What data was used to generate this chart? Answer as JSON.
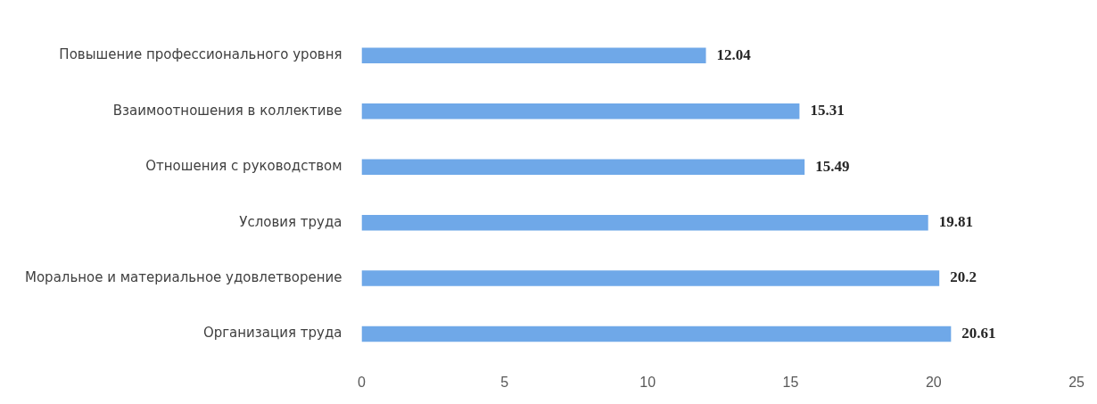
{
  "chart_data": {
    "type": "bar",
    "orientation": "horizontal",
    "categories": [
      "Повышение профессионального уровня",
      "Взаимоотношения в коллективе",
      "Отношения с руководством",
      "Условия труда",
      "Моральное и материальное удовлетворение",
      "Организация труда"
    ],
    "values": [
      12.04,
      15.31,
      15.49,
      19.81,
      20.2,
      20.61
    ],
    "color": "#6fa8e8",
    "xlim": [
      0,
      25
    ],
    "xticks": [
      0,
      5,
      10,
      15,
      20,
      25
    ],
    "grid": false,
    "legend": false,
    "data_labels": true
  }
}
